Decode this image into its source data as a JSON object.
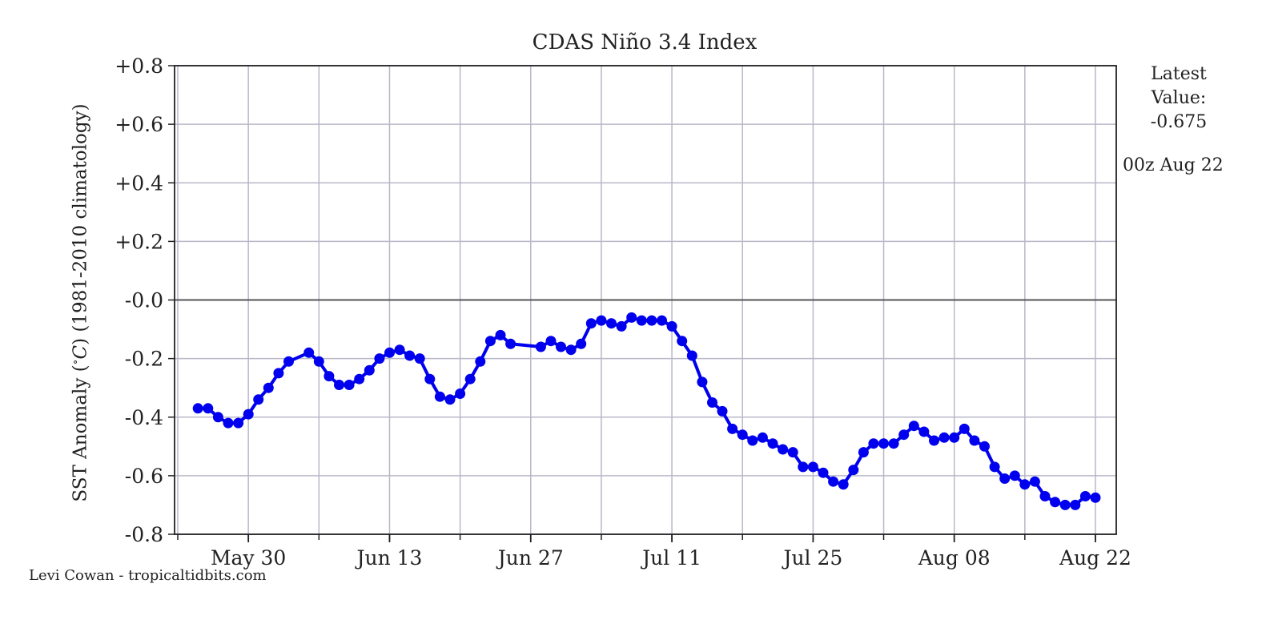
{
  "chart_data": {
    "type": "line",
    "title": "CDAS Niño 3.4 Index",
    "ylabel": "SST Anomaly ($^\\circ C$) (1981-2010 climatology)",
    "ylabel_parts": [
      "SST Anomaly (",
      "∘",
      "C",
      ") (1981-2010 climatology)"
    ],
    "xlabel": "",
    "ylim": [
      -0.8,
      0.8
    ],
    "y_ticks": [
      0.8,
      0.6,
      0.4,
      0.2,
      0.0,
      -0.2,
      -0.4,
      -0.6,
      -0.8
    ],
    "y_tick_labels": [
      "+0.8",
      "+0.6",
      "+0.4",
      "+0.2",
      "-0.0",
      "-0.2",
      "-0.4",
      "-0.6",
      "-0.8"
    ],
    "x_range": [
      "2022-05-23",
      "2022-08-22"
    ],
    "x_ticks": [
      "2022-05-30",
      "2022-06-13",
      "2022-06-27",
      "2022-07-11",
      "2022-07-25",
      "2022-08-08",
      "2022-08-22"
    ],
    "x_tick_labels": [
      "May 30",
      "Jun 13",
      "Jun 27",
      "Jul 11",
      "Jul 25",
      "Aug 08",
      "Aug 22"
    ],
    "grid": true,
    "line_color": "#0000ee",
    "zero_line_color": "#555555",
    "series": [
      {
        "values": [
          [
            "2022-05-25",
            -0.37
          ],
          [
            "2022-05-26",
            -0.37
          ],
          [
            "2022-05-27",
            -0.4
          ],
          [
            "2022-05-28",
            -0.42
          ],
          [
            "2022-05-29",
            -0.42
          ],
          [
            "2022-05-30",
            -0.39
          ],
          [
            "2022-05-31",
            -0.34
          ],
          [
            "2022-06-01",
            -0.3
          ],
          [
            "2022-06-02",
            -0.25
          ],
          [
            "2022-06-03",
            -0.21
          ],
          [
            "2022-06-05",
            -0.18
          ],
          [
            "2022-06-06",
            -0.21
          ],
          [
            "2022-06-07",
            -0.26
          ],
          [
            "2022-06-08",
            -0.29
          ],
          [
            "2022-06-09",
            -0.29
          ],
          [
            "2022-06-10",
            -0.27
          ],
          [
            "2022-06-11",
            -0.24
          ],
          [
            "2022-06-12",
            -0.2
          ],
          [
            "2022-06-13",
            -0.18
          ],
          [
            "2022-06-14",
            -0.17
          ],
          [
            "2022-06-15",
            -0.19
          ],
          [
            "2022-06-16",
            -0.2
          ],
          [
            "2022-06-17",
            -0.27
          ],
          [
            "2022-06-18",
            -0.33
          ],
          [
            "2022-06-19",
            -0.34
          ],
          [
            "2022-06-20",
            -0.32
          ],
          [
            "2022-06-21",
            -0.27
          ],
          [
            "2022-06-22",
            -0.21
          ],
          [
            "2022-06-23",
            -0.14
          ],
          [
            "2022-06-24",
            -0.12
          ],
          [
            "2022-06-25",
            -0.15
          ],
          [
            "2022-06-28",
            -0.16
          ],
          [
            "2022-06-29",
            -0.14
          ],
          [
            "2022-06-30",
            -0.16
          ],
          [
            "2022-07-01",
            -0.17
          ],
          [
            "2022-07-02",
            -0.15
          ],
          [
            "2022-07-03",
            -0.08
          ],
          [
            "2022-07-04",
            -0.07
          ],
          [
            "2022-07-05",
            -0.08
          ],
          [
            "2022-07-06",
            -0.09
          ],
          [
            "2022-07-07",
            -0.06
          ],
          [
            "2022-07-08",
            -0.07
          ],
          [
            "2022-07-09",
            -0.07
          ],
          [
            "2022-07-10",
            -0.07
          ],
          [
            "2022-07-11",
            -0.09
          ],
          [
            "2022-07-12",
            -0.14
          ],
          [
            "2022-07-13",
            -0.19
          ],
          [
            "2022-07-14",
            -0.28
          ],
          [
            "2022-07-15",
            -0.35
          ],
          [
            "2022-07-16",
            -0.38
          ],
          [
            "2022-07-17",
            -0.44
          ],
          [
            "2022-07-18",
            -0.46
          ],
          [
            "2022-07-19",
            -0.48
          ],
          [
            "2022-07-20",
            -0.47
          ],
          [
            "2022-07-21",
            -0.49
          ],
          [
            "2022-07-22",
            -0.51
          ],
          [
            "2022-07-23",
            -0.52
          ],
          [
            "2022-07-24",
            -0.57
          ],
          [
            "2022-07-25",
            -0.57
          ],
          [
            "2022-07-26",
            -0.59
          ],
          [
            "2022-07-27",
            -0.62
          ],
          [
            "2022-07-28",
            -0.63
          ],
          [
            "2022-07-29",
            -0.58
          ],
          [
            "2022-07-30",
            -0.52
          ],
          [
            "2022-07-31",
            -0.49
          ],
          [
            "2022-08-01",
            -0.49
          ],
          [
            "2022-08-02",
            -0.49
          ],
          [
            "2022-08-03",
            -0.46
          ],
          [
            "2022-08-04",
            -0.43
          ],
          [
            "2022-08-05",
            -0.45
          ],
          [
            "2022-08-06",
            -0.48
          ],
          [
            "2022-08-07",
            -0.47
          ],
          [
            "2022-08-08",
            -0.47
          ],
          [
            "2022-08-09",
            -0.44
          ],
          [
            "2022-08-10",
            -0.48
          ],
          [
            "2022-08-11",
            -0.5
          ],
          [
            "2022-08-12",
            -0.57
          ],
          [
            "2022-08-13",
            -0.61
          ],
          [
            "2022-08-14",
            -0.6
          ],
          [
            "2022-08-15",
            -0.63
          ],
          [
            "2022-08-16",
            -0.62
          ],
          [
            "2022-08-17",
            -0.67
          ],
          [
            "2022-08-18",
            -0.69
          ],
          [
            "2022-08-19",
            -0.7
          ],
          [
            "2022-08-20",
            -0.7
          ],
          [
            "2022-08-21",
            -0.67
          ],
          [
            "2022-08-22",
            -0.675
          ]
        ]
      }
    ]
  },
  "latest": {
    "line1": "Latest",
    "line2": "Value:",
    "value": "-0.675",
    "time": "00z Aug 22"
  },
  "credit": "Levi Cowan - tropicaltidbits.com"
}
